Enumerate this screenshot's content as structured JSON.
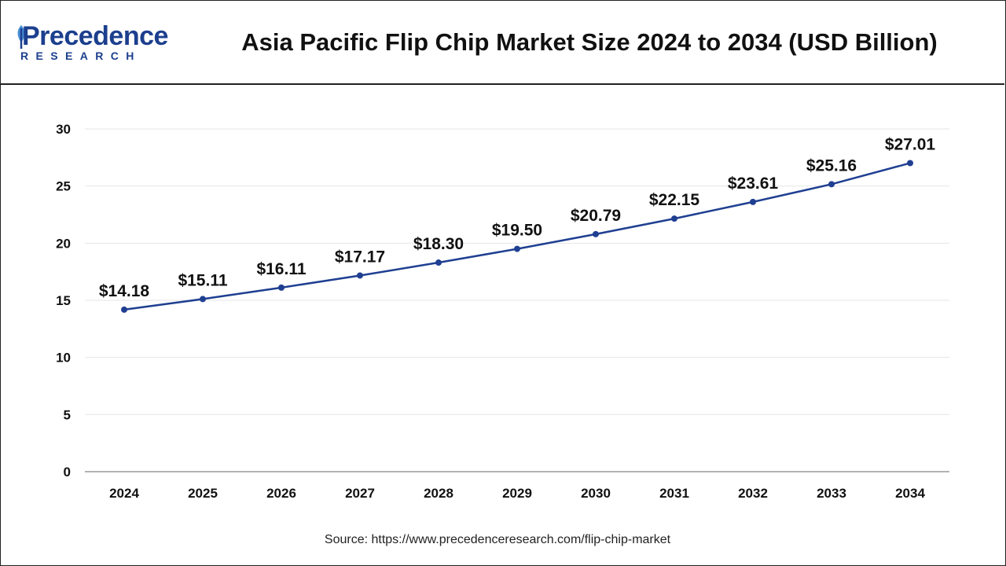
{
  "header": {
    "logo_main": "Precedence",
    "logo_sub": "RESEARCH",
    "title": "Asia Pacific Flip Chip Market Size 2024 to 2034 (USD Billion)"
  },
  "footer": {
    "source": "Source: https://www.precedenceresearch.com/flip-chip-market"
  },
  "colors": {
    "line": "#1f3f91",
    "marker": "#1f3f91",
    "grid": "#e6e6e6",
    "axis": "#999999",
    "brand": "#1c3f8e"
  },
  "chart_data": {
    "type": "line",
    "title": "Asia Pacific Flip Chip Market Size 2024 to 2034 (USD Billion)",
    "x": [
      "2024",
      "2025",
      "2026",
      "2027",
      "2028",
      "2029",
      "2030",
      "2031",
      "2032",
      "2033",
      "2034"
    ],
    "series": [
      {
        "values": [
          14.18,
          15.11,
          16.11,
          17.17,
          18.3,
          19.5,
          20.79,
          22.15,
          23.61,
          25.16,
          27.01
        ],
        "labels": [
          "$14.18",
          "$15.11",
          "$16.11",
          "$17.17",
          "$18.30",
          "$19.50",
          "$20.79",
          "$22.15",
          "$23.61",
          "$25.16",
          "$27.01"
        ]
      }
    ],
    "yticks": [
      "0",
      "5",
      "10",
      "15",
      "20",
      "25",
      "30"
    ],
    "ylim": [
      0,
      30
    ],
    "xlabel": "",
    "ylabel": "",
    "grid": true,
    "legend": "none"
  }
}
